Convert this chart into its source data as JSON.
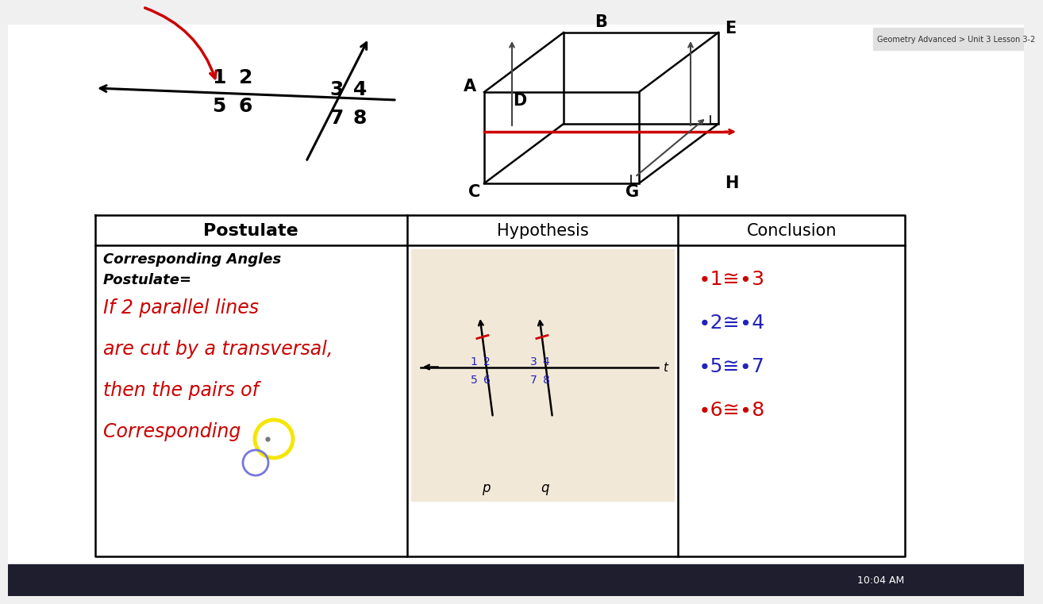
{
  "bg_color": "#f0f0f0",
  "content_bg": "#ffffff",
  "taskbar_color": "#1e1e2e",
  "table_border_color": "#333333",
  "header_text_color": "#000000",
  "handwritten_lines": [
    "If 2 parallel lines",
    "are cut by a transversal,",
    "then the pairs of",
    "Corresponding"
  ],
  "handwritten_color": "#cc0000",
  "conclusion_entries": [
    [
      "∙1≅∙3",
      "#cc0000"
    ],
    [
      "∙2≅∙4",
      "#2222bb"
    ],
    [
      "∙5≅∙7",
      "#2222bb"
    ],
    [
      "∙6≅∙8",
      "#cc0000"
    ]
  ],
  "hypothesis_bg": "#f2e8d8",
  "chrome_bar_color": "#e0e0e0",
  "chrome_text": "Geometry Advanced > Unit 3 Lesson 3-2",
  "time_text": "10:04 AM"
}
